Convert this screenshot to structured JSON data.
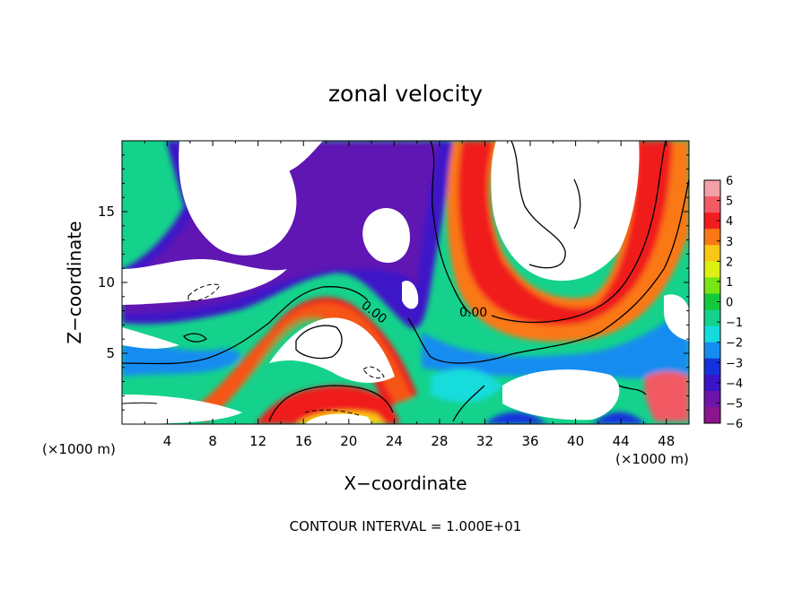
{
  "chart_data": {
    "type": "heatmap",
    "title": "zonal velocity",
    "xlabel": "X−coordinate",
    "ylabel": "Z−coordinate",
    "x_unit": "(×1000 m)",
    "x_unit_right": "(×1000 m)",
    "xlim": [
      0,
      50
    ],
    "ylim": [
      0,
      20
    ],
    "x_ticks": [
      "4",
      "8",
      "12",
      "16",
      "20",
      "24",
      "28",
      "32",
      "36",
      "40",
      "44",
      "48"
    ],
    "y_ticks": [
      "5",
      "10",
      "15"
    ],
    "colorbar": {
      "labels": [
        "6",
        "5",
        "4",
        "3",
        "2",
        "1",
        "0",
        "−1",
        "−2",
        "−3",
        "−4",
        "−5",
        "−6"
      ],
      "colors": [
        "#f4a0a8",
        "#f25a64",
        "#f01e1e",
        "#fa7814",
        "#fac814",
        "#dcf014",
        "#78e614",
        "#14c83c",
        "#14d28c",
        "#14dcdc",
        "#148cf0",
        "#1432dc",
        "#3c14c8",
        "#6e14aa",
        "#8c148c"
      ]
    },
    "contour_labels": [
      "0.00",
      "0.00"
    ],
    "contour_interval": "CONTOUR INTERVAL = 1.000E+01",
    "colors": {
      "red": "#f01e1e",
      "blue": "#1432dc",
      "green": "#14c83c",
      "purple": "#6e14aa"
    }
  }
}
